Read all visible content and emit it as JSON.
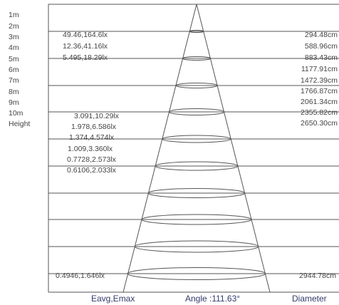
{
  "height_labels": [
    "1m",
    "2m",
    "3m",
    "4m",
    "5m",
    "6m",
    "7m",
    "8m",
    "9m",
    "10m"
  ],
  "height_axis_label": "Height",
  "illuminance_labels": [
    "49.46,164.6lx",
    "12.36,41.16lx",
    "5.495,18.29lx",
    "3.091,10.29lx",
    "1.978,6.586lx",
    "1.374,4.574lx",
    "1.009,3.360lx",
    "0.7728,2.573lx",
    "0.6106,2.033lx",
    "0.4946,1.646lx"
  ],
  "diameter_labels": [
    "294.48cm",
    "588.96cm",
    "883.43cm",
    "1177.91cm",
    "1472.39cm",
    "1766.87cm",
    "2061.34cm",
    "2355.82cm",
    "2650.30cm",
    "2944.78cm"
  ],
  "footer": {
    "illuminance_caption": "Eavg,Emax",
    "angle_caption": "Angle :111.63°",
    "diameter_caption": "Diameter"
  },
  "colors": {
    "lines": "#555555",
    "text": "#444444",
    "caption": "#333a6a"
  }
}
